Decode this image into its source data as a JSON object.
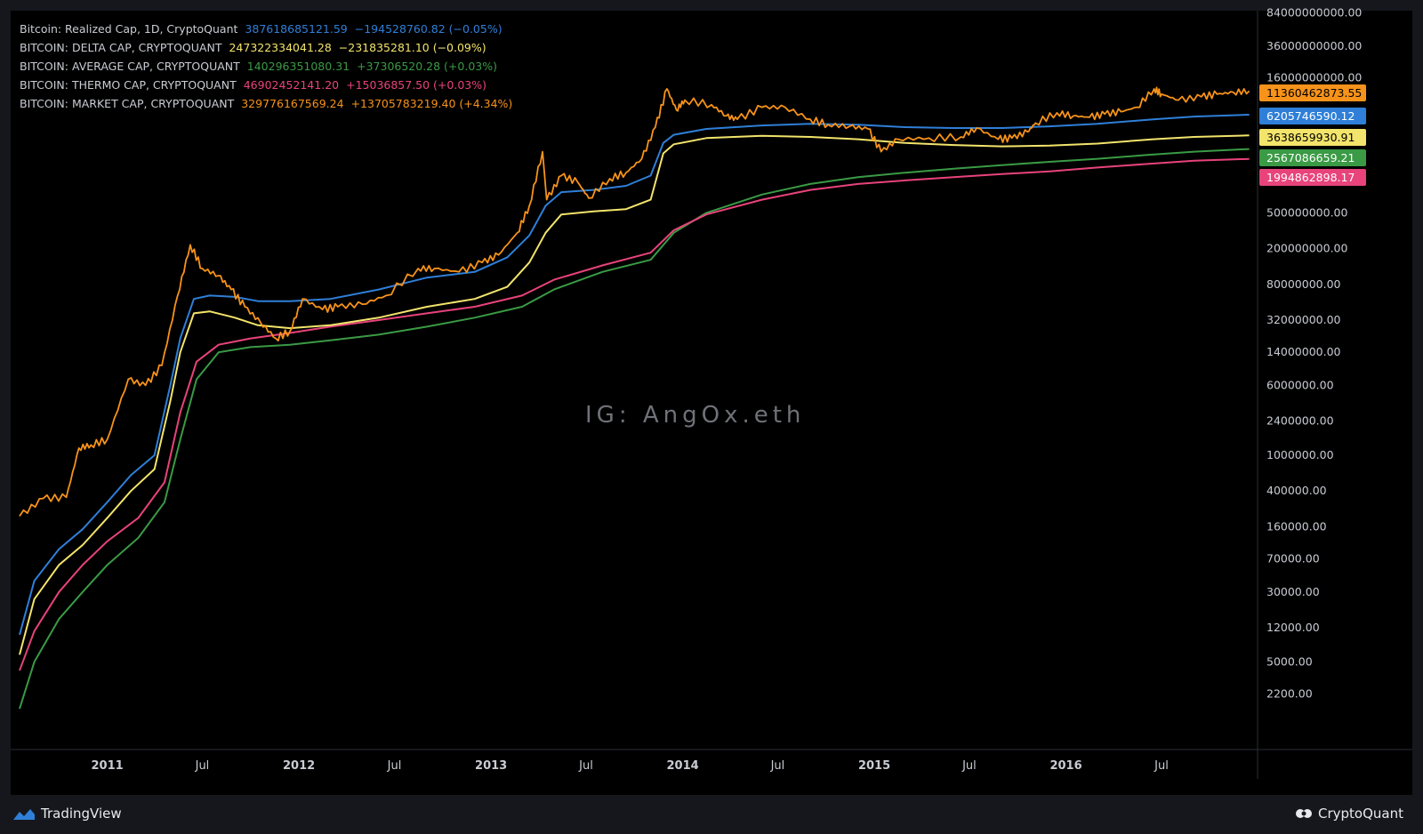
{
  "legend": [
    {
      "name": "Bitcoin: Realized Cap, 1D, CryptoQuant",
      "value": "387618685121.59",
      "change": "−194528760.82 (−0.05%)",
      "color": "#2f7fd8"
    },
    {
      "name": "BITCOIN: DELTA CAP, CRYPTOQUANT",
      "value": "247322334041.28",
      "change": "−231835281.10 (−0.09%)",
      "color": "#f3e46b"
    },
    {
      "name": "BITCOIN: AVERAGE CAP, CRYPTOQUANT",
      "value": "140296351080.31",
      "change": "+37306520.28 (+0.03%)",
      "color": "#3a9a45"
    },
    {
      "name": "BITCOIN: THERMO CAP, CRYPTOQUANT",
      "value": "46902452141.20",
      "change": "+15036857.50 (+0.03%)",
      "color": "#e8437a"
    },
    {
      "name": "BITCOIN: MARKET CAP, CRYPTOQUANT",
      "value": "329776167569.24",
      "change": "+13705783219.40 (+4.34%)",
      "color": "#f7931a"
    }
  ],
  "watermark": "IG: AngOx.eth",
  "branding": {
    "left": "TradingView",
    "right": "CryptoQuant"
  },
  "chart_data": {
    "type": "line",
    "y_scale": "log",
    "x_start": "2010-07",
    "x_end": "2016-12",
    "x_tick_labels": [
      "2011",
      "Jul",
      "2012",
      "Jul",
      "2013",
      "Jul",
      "2014",
      "Jul",
      "2015",
      "Jul",
      "2016",
      "Jul"
    ],
    "y_tick_labels": [
      "84000000000.00",
      "36000000000.00",
      "16000000000.00",
      "500000000.00",
      "200000000.00",
      "80000000.00",
      "32000000.00",
      "14000000.00",
      "6000000.00",
      "2400000.00",
      "1000000.00",
      "400000.00",
      "160000.00",
      "70000.00",
      "30000.00",
      "12000.00",
      "5000.00",
      "2200.00"
    ],
    "price_tags": [
      {
        "label": "11360462873.55",
        "series": "market",
        "bg": "#f7931a",
        "fg": "#000000"
      },
      {
        "label": "6205746590.12",
        "series": "realized",
        "bg": "#2f7fd8",
        "fg": "#ffffff"
      },
      {
        "label": "3638659930.91",
        "series": "delta",
        "bg": "#f3e46b",
        "fg": "#000000"
      },
      {
        "label": "2567086659.21",
        "series": "average",
        "bg": "#3a9a45",
        "fg": "#ffffff"
      },
      {
        "label": "1994862898.17",
        "series": "thermo",
        "bg": "#e8437a",
        "fg": "#ffffff"
      }
    ],
    "series": [
      {
        "key": "market",
        "color": "#f7931a",
        "x": [
          "2010-07-18",
          "2010-09-01",
          "2010-10-15",
          "2010-11-08",
          "2010-12-01",
          "2011-01-01",
          "2011-02-10",
          "2011-03-15",
          "2011-04-15",
          "2011-05-15",
          "2011-06-08",
          "2011-07-01",
          "2011-08-01",
          "2011-08-25",
          "2011-09-20",
          "2011-10-20",
          "2011-11-18",
          "2011-12-15",
          "2012-01-08",
          "2012-02-15",
          "2012-03-15",
          "2012-05-01",
          "2012-06-15",
          "2012-08-15",
          "2012-09-15",
          "2012-11-01",
          "2012-12-15",
          "2013-01-15",
          "2013-02-20",
          "2013-03-15",
          "2013-04-09",
          "2013-04-17",
          "2013-05-15",
          "2013-06-15",
          "2013-07-06",
          "2013-08-15",
          "2013-09-15",
          "2013-10-15",
          "2013-11-10",
          "2013-12-02",
          "2013-12-20",
          "2014-01-05",
          "2014-02-25",
          "2014-03-25",
          "2014-04-15",
          "2014-06-01",
          "2014-07-15",
          "2014-09-01",
          "2014-10-05",
          "2014-11-15",
          "2014-12-20",
          "2015-01-14",
          "2015-02-15",
          "2015-04-15",
          "2015-06-15",
          "2015-07-15",
          "2015-08-25",
          "2015-09-20",
          "2015-10-20",
          "2015-11-04",
          "2015-12-15",
          "2016-01-15",
          "2016-02-15",
          "2016-03-15",
          "2016-04-15",
          "2016-05-15",
          "2016-06-17",
          "2016-07-01",
          "2016-08-02",
          "2016-09-15",
          "2016-10-15",
          "2016-11-15",
          "2016-12-15"
        ],
        "y": [
          210000,
          330000,
          340000,
          1200000,
          1300000,
          1500000,
          7000000,
          6000000,
          10000000,
          60000000,
          220000000,
          120000000,
          100000000,
          70000000,
          45000000,
          30000000,
          20000000,
          24000000,
          55000000,
          42000000,
          45000000,
          48000000,
          60000000,
          120000000,
          120000000,
          110000000,
          140000000,
          170000000,
          300000000,
          600000000,
          2400000000,
          700000000,
          1300000000,
          1100000000,
          730000000,
          1200000000,
          1400000000,
          2000000000,
          4500000000,
          12000000000,
          7000000000,
          9000000000,
          8000000000,
          6000000000,
          5500000000,
          7500000000,
          7500000000,
          5500000000,
          4800000000,
          4600000000,
          4300000000,
          2400000000,
          3300000000,
          3400000000,
          3500000000,
          4400000000,
          3300000000,
          3400000000,
          4000000000,
          5000000000,
          6500000000,
          6000000000,
          5800000000,
          6300000000,
          6700000000,
          7500000000,
          12000000000,
          10500000000,
          9000000000,
          9800000000,
          10500000000,
          11000000000,
          11360000000
        ]
      },
      {
        "key": "realized",
        "color": "#2f7fd8",
        "x": [
          "2010-07-18",
          "2010-08-15",
          "2010-10-01",
          "2010-11-15",
          "2011-01-01",
          "2011-02-15",
          "2011-04-01",
          "2011-05-01",
          "2011-05-20",
          "2011-06-15",
          "2011-07-15",
          "2011-09-01",
          "2011-10-15",
          "2011-12-15",
          "2012-03-01",
          "2012-06-01",
          "2012-09-01",
          "2012-12-01",
          "2013-02-01",
          "2013-03-15",
          "2013-04-15",
          "2013-05-15",
          "2013-07-15",
          "2013-09-15",
          "2013-11-01",
          "2013-11-25",
          "2013-12-15",
          "2014-02-15",
          "2014-06-01",
          "2014-09-01",
          "2014-12-01",
          "2015-03-01",
          "2015-06-01",
          "2015-09-01",
          "2015-12-01",
          "2016-03-01",
          "2016-06-15",
          "2016-09-01",
          "2016-12-15"
        ],
        "y": [
          10000,
          40000,
          90000,
          150000,
          300000,
          600000,
          1000000,
          6000000,
          20000000,
          55000000,
          60000000,
          58000000,
          52000000,
          52000000,
          55000000,
          70000000,
          95000000,
          110000000,
          160000000,
          280000000,
          600000000,
          850000000,
          900000000,
          1000000000,
          1300000000,
          3000000000,
          3700000000,
          4300000000,
          4700000000,
          4900000000,
          4800000000,
          4500000000,
          4400000000,
          4400000000,
          4600000000,
          4900000000,
          5500000000,
          5900000000,
          6200000000
        ]
      },
      {
        "key": "delta",
        "color": "#f3e46b",
        "x": [
          "2010-07-18",
          "2010-08-15",
          "2010-10-01",
          "2010-11-15",
          "2011-01-01",
          "2011-02-15",
          "2011-04-01",
          "2011-05-01",
          "2011-05-20",
          "2011-06-15",
          "2011-07-15",
          "2011-09-01",
          "2011-10-15",
          "2011-12-15",
          "2012-03-01",
          "2012-06-01",
          "2012-09-01",
          "2012-12-01",
          "2013-02-01",
          "2013-03-15",
          "2013-04-15",
          "2013-05-15",
          "2013-07-15",
          "2013-09-15",
          "2013-11-01",
          "2013-11-25",
          "2013-12-15",
          "2014-02-15",
          "2014-06-01",
          "2014-09-01",
          "2014-12-01",
          "2015-03-01",
          "2015-06-01",
          "2015-09-01",
          "2015-12-01",
          "2016-03-01",
          "2016-06-15",
          "2016-09-01",
          "2016-12-15"
        ],
        "y": [
          6000,
          25000,
          60000,
          100000,
          200000,
          400000,
          700000,
          4000000,
          14000000,
          38000000,
          40000000,
          34000000,
          28000000,
          26000000,
          28000000,
          34000000,
          45000000,
          55000000,
          75000000,
          140000000,
          300000000,
          480000000,
          520000000,
          550000000,
          700000000,
          2300000000,
          2900000000,
          3400000000,
          3600000000,
          3500000000,
          3300000000,
          3000000000,
          2850000000,
          2750000000,
          2800000000,
          2950000000,
          3300000000,
          3500000000,
          3640000000
        ]
      },
      {
        "key": "average",
        "color": "#3a9a45",
        "x": [
          "2010-07-18",
          "2010-08-15",
          "2010-10-01",
          "2010-11-15",
          "2011-01-01",
          "2011-03-01",
          "2011-04-20",
          "2011-05-20",
          "2011-06-20",
          "2011-08-01",
          "2011-10-01",
          "2011-12-15",
          "2012-03-01",
          "2012-06-01",
          "2012-09-01",
          "2012-12-01",
          "2013-03-01",
          "2013-05-01",
          "2013-08-01",
          "2013-11-01",
          "2013-12-15",
          "2014-02-15",
          "2014-06-01",
          "2014-09-01",
          "2014-12-01",
          "2015-03-01",
          "2015-06-01",
          "2015-09-01",
          "2015-12-01",
          "2016-03-01",
          "2016-06-01",
          "2016-09-01",
          "2016-12-15"
        ],
        "y": [
          1500,
          5000,
          15000,
          30000,
          60000,
          120000,
          300000,
          1500000,
          7000000,
          14000000,
          16000000,
          17000000,
          19000000,
          22000000,
          27000000,
          34000000,
          45000000,
          70000000,
          110000000,
          150000000,
          300000000,
          500000000,
          800000000,
          1050000000,
          1250000000,
          1400000000,
          1550000000,
          1700000000,
          1850000000,
          2000000000,
          2200000000,
          2400000000,
          2570000000
        ]
      },
      {
        "key": "thermo",
        "color": "#e8437a",
        "x": [
          "2010-07-18",
          "2010-08-15",
          "2010-10-01",
          "2010-11-15",
          "2011-01-01",
          "2011-03-01",
          "2011-04-20",
          "2011-05-20",
          "2011-06-20",
          "2011-08-01",
          "2011-10-01",
          "2011-12-15",
          "2012-03-01",
          "2012-06-01",
          "2012-09-01",
          "2012-12-01",
          "2013-03-01",
          "2013-05-01",
          "2013-08-01",
          "2013-11-01",
          "2013-12-15",
          "2014-02-15",
          "2014-06-01",
          "2014-09-01",
          "2014-12-01",
          "2015-03-01",
          "2015-06-01",
          "2015-09-01",
          "2015-12-01",
          "2016-03-01",
          "2016-06-01",
          "2016-09-01",
          "2016-12-15"
        ],
        "y": [
          4000,
          11000,
          30000,
          60000,
          110000,
          200000,
          500000,
          3000000,
          11000000,
          17000000,
          20000000,
          23000000,
          27000000,
          32000000,
          38000000,
          45000000,
          60000000,
          90000000,
          130000000,
          180000000,
          320000000,
          480000000,
          700000000,
          900000000,
          1050000000,
          1150000000,
          1250000000,
          1350000000,
          1450000000,
          1600000000,
          1750000000,
          1900000000,
          1995000000
        ]
      }
    ]
  }
}
